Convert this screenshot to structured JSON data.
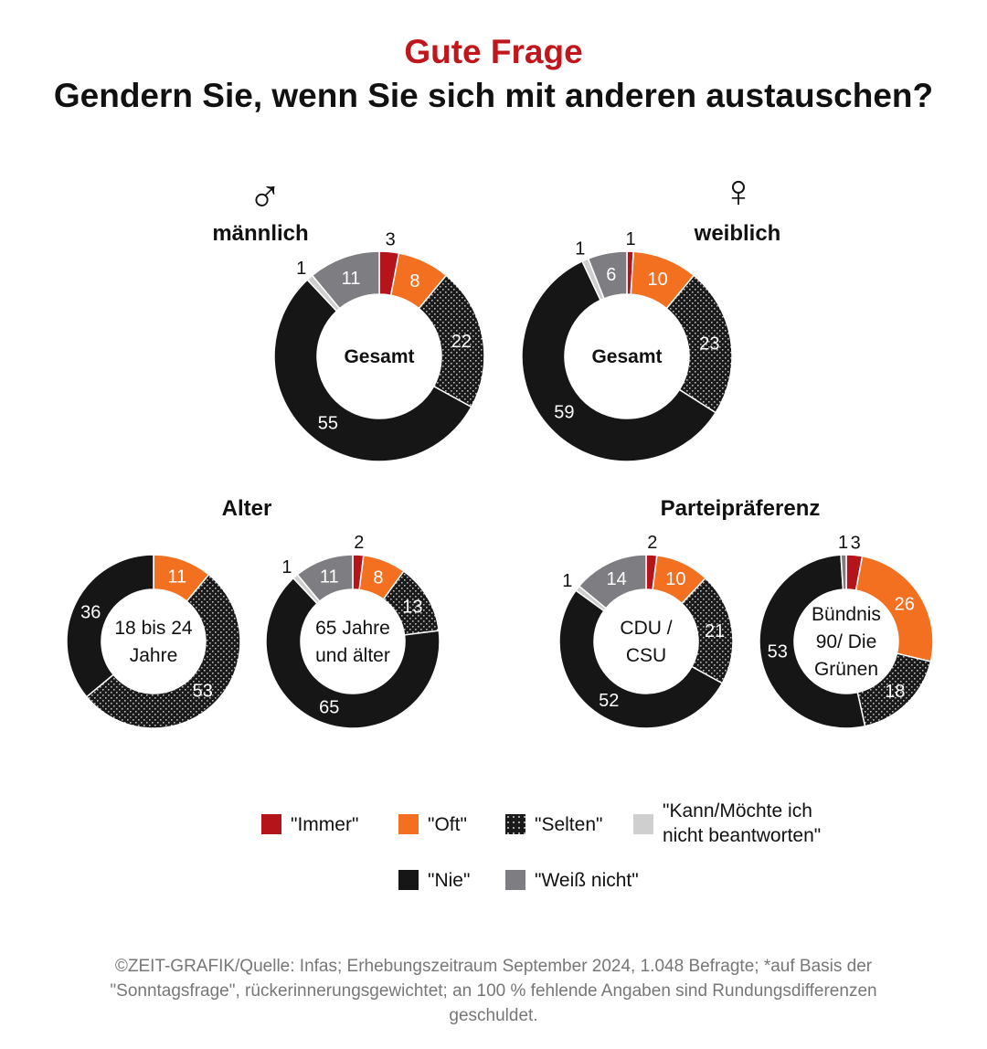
{
  "header": {
    "kicker": "Gute Frage",
    "title": "Gendern Sie, wenn Sie sich mit anderen austauschen?"
  },
  "sections": {
    "maennlich": "männlich",
    "weiblich": "weiblich",
    "alter": "Alter",
    "partei": "Parteipräferenz"
  },
  "symbols": {
    "male": "♂",
    "female": "♀"
  },
  "colors": {
    "immer": "#b5141a",
    "oft": "#f37021",
    "selten": "#1a1a1a",
    "kann": "#cfcfcf",
    "nie": "#161616",
    "weiss": "#7e7e82"
  },
  "legend": {
    "immer": "\"Immer\"",
    "oft": "\"Oft\"",
    "selten": "\"Selten\"",
    "kann": "\"Kann/Möchte ich\nnicht beantworten\"",
    "nie": "\"Nie\"",
    "weiss": "\"Weiß nicht\""
  },
  "chart_data": [
    {
      "type": "pie",
      "id": "maennlich-gesamt",
      "center_label": "Gesamt",
      "slices": [
        {
          "category": "Immer",
          "value": 3
        },
        {
          "category": "Oft",
          "value": 8
        },
        {
          "category": "Selten",
          "value": 22
        },
        {
          "category": "Nie",
          "value": 55
        },
        {
          "category": "Kann/Möchte ich nicht beantworten",
          "value": 1
        },
        {
          "category": "Weiß nicht",
          "value": 11
        }
      ]
    },
    {
      "type": "pie",
      "id": "weiblich-gesamt",
      "center_label": "Gesamt",
      "slices": [
        {
          "category": "Immer",
          "value": 1
        },
        {
          "category": "Oft",
          "value": 10
        },
        {
          "category": "Selten",
          "value": 23
        },
        {
          "category": "Nie",
          "value": 59
        },
        {
          "category": "Kann/Möchte ich nicht beantworten",
          "value": 1
        },
        {
          "category": "Weiß nicht",
          "value": 6
        }
      ]
    },
    {
      "type": "pie",
      "id": "alter-18-24",
      "center_label": "18 bis 24\nJahre",
      "slices": [
        {
          "category": "Oft",
          "value": 11
        },
        {
          "category": "Selten",
          "value": 53
        },
        {
          "category": "Nie",
          "value": 36
        }
      ]
    },
    {
      "type": "pie",
      "id": "alter-65",
      "center_label": "65 Jahre\nund älter",
      "slices": [
        {
          "category": "Immer",
          "value": 2
        },
        {
          "category": "Oft",
          "value": 8
        },
        {
          "category": "Selten",
          "value": 13
        },
        {
          "category": "Nie",
          "value": 65
        },
        {
          "category": "Kann/Möchte ich nicht beantworten",
          "value": 1
        },
        {
          "category": "Weiß nicht",
          "value": 11
        }
      ]
    },
    {
      "type": "pie",
      "id": "partei-cdu",
      "center_label": "CDU /\nCSU",
      "slices": [
        {
          "category": "Immer",
          "value": 2
        },
        {
          "category": "Oft",
          "value": 10
        },
        {
          "category": "Selten",
          "value": 21
        },
        {
          "category": "Nie",
          "value": 52
        },
        {
          "category": "Kann/Möchte ich nicht beantworten",
          "value": 1
        },
        {
          "category": "Weiß nicht",
          "value": 14
        }
      ]
    },
    {
      "type": "pie",
      "id": "partei-gruene",
      "center_label": "Bündnis\n90/ Die\nGrünen",
      "slices": [
        {
          "category": "Immer",
          "value": 3
        },
        {
          "category": "Oft",
          "value": 26
        },
        {
          "category": "Selten",
          "value": 18
        },
        {
          "category": "Nie",
          "value": 53
        },
        {
          "category": "Weiß nicht",
          "value": 1
        }
      ]
    }
  ],
  "footer": "©ZEIT-GRAFIK/Quelle: Infas; Erhebungszeitraum September 2024, 1.048 Befragte; *auf Basis der \"Sonntagsfrage\", rückerinnerungsgewichtet; an 100 % fehlende Angaben sind Rundungsdifferenzen geschuldet."
}
